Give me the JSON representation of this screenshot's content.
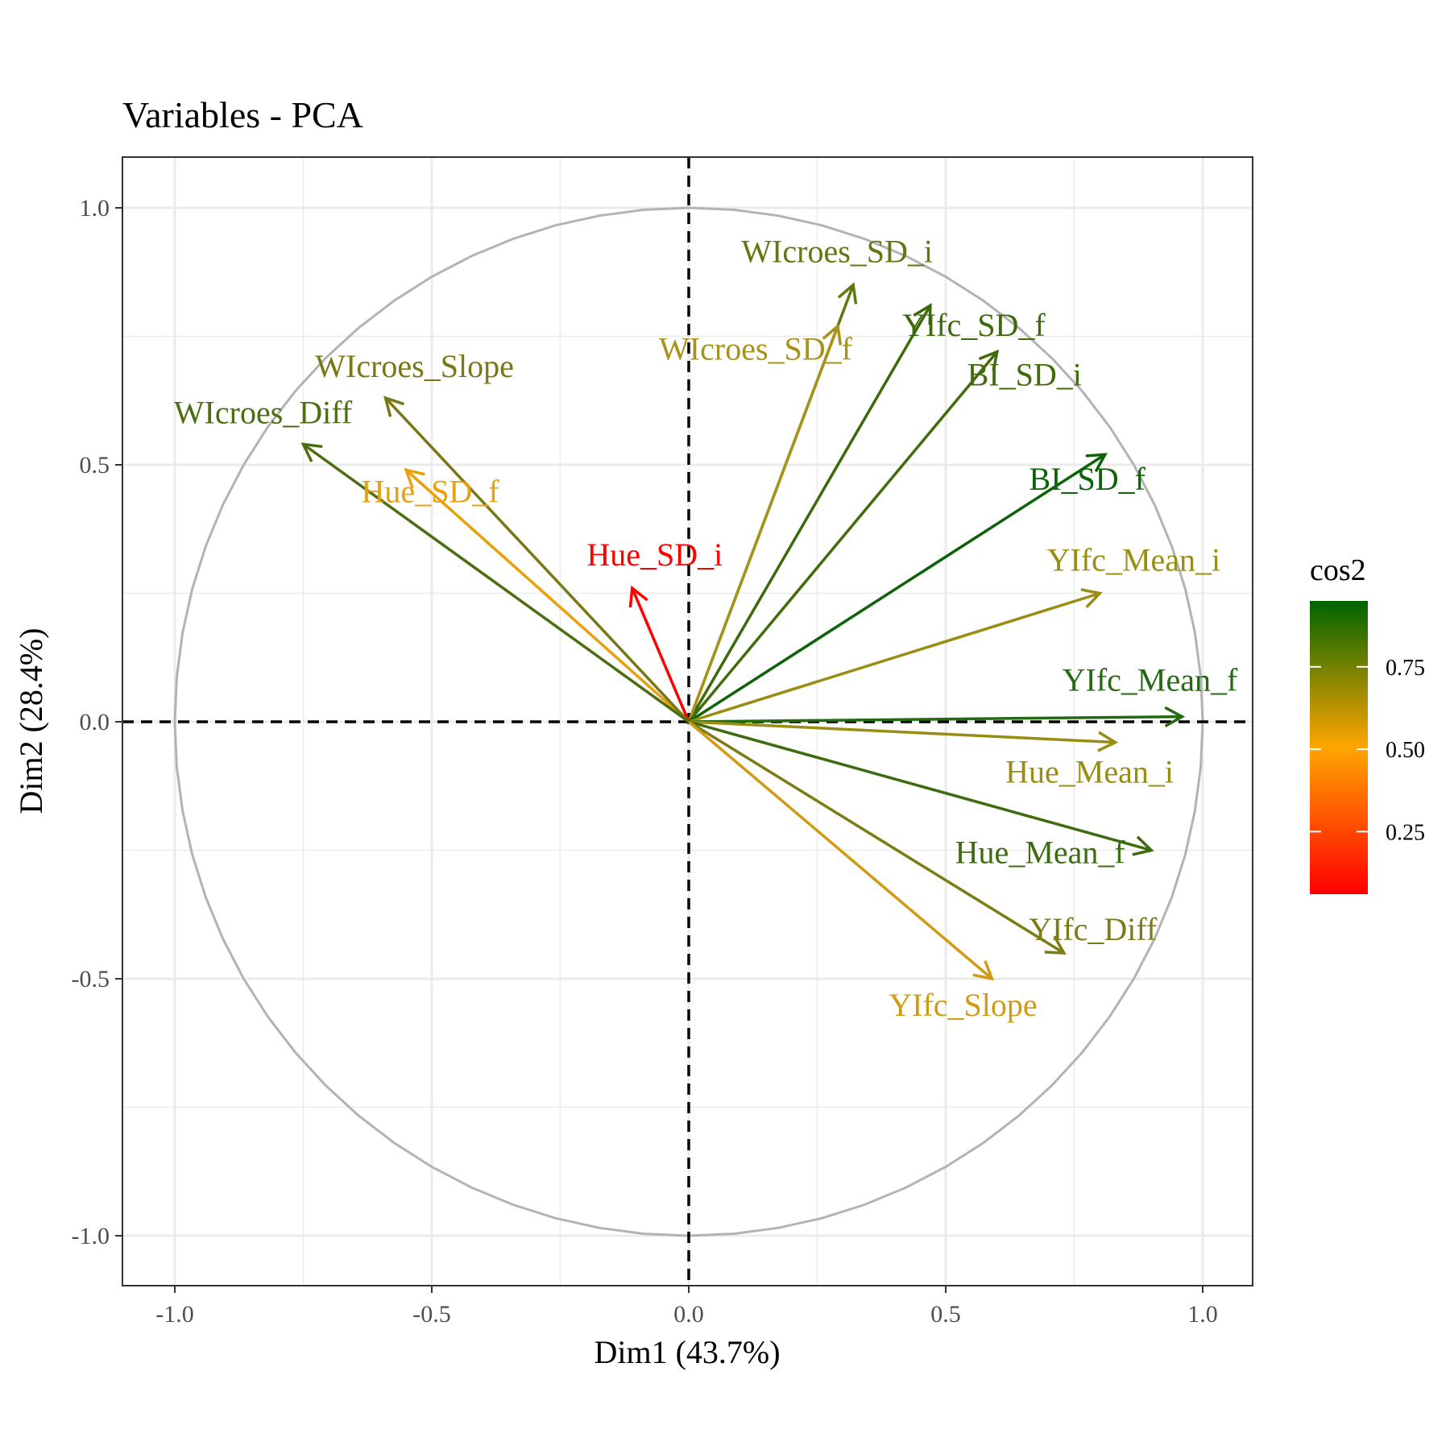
{
  "chart_data": {
    "type": "scatter",
    "subtype": "pca-variable-correlation-circle",
    "title": "Variables - PCA",
    "xlabel": "Dim1 (43.7%)",
    "ylabel": "Dim2 (28.4%)",
    "xlim": [
      -1.1,
      1.1
    ],
    "ylim": [
      -1.1,
      1.1
    ],
    "xticks": [
      -1.0,
      -0.5,
      0.0,
      0.5,
      1.0
    ],
    "yticks": [
      -1.0,
      -0.5,
      0.0,
      0.5,
      1.0
    ],
    "xtick_labels": [
      "-1.0",
      "-0.5",
      "0.0",
      "0.5",
      "1.0"
    ],
    "ytick_labels": [
      "-1.0",
      "-0.5",
      "0.0",
      "0.5",
      "1.0"
    ],
    "grid": true,
    "reference_lines": {
      "x": 0,
      "y": 0,
      "style": "dashed"
    },
    "unit_circle": true,
    "legend": {
      "title": "cos2",
      "position": "right",
      "range": [
        0.06,
        0.95
      ],
      "breaks": [
        0.25,
        0.5,
        0.75
      ],
      "break_labels": [
        "0.25",
        "0.50",
        "0.75"
      ],
      "colors": {
        "low": "#FF0000",
        "mid": "#FFA500",
        "high": "#006400"
      }
    },
    "variables": [
      {
        "name": "WIcroes_SD_i",
        "x": 0.32,
        "y": 0.85,
        "cos2": 0.82,
        "color": "#5E7A0F"
      },
      {
        "name": "YIfc_SD_f",
        "x": 0.47,
        "y": 0.81,
        "cos2": 0.88,
        "color": "#3C6A0B"
      },
      {
        "name": "WIcroes_SD_f",
        "x": 0.29,
        "y": 0.77,
        "cos2": 0.68,
        "color": "#A8921A"
      },
      {
        "name": "BI_SD_i",
        "x": 0.6,
        "y": 0.72,
        "cos2": 0.87,
        "color": "#436B0E"
      },
      {
        "name": "BI_SD_f",
        "x": 0.81,
        "y": 0.52,
        "cos2": 0.93,
        "color": "#0E6209"
      },
      {
        "name": "YIfc_Mean_i",
        "x": 0.8,
        "y": 0.25,
        "cos2": 0.7,
        "color": "#9A8D14"
      },
      {
        "name": "YIfc_Mean_f",
        "x": 0.96,
        "y": 0.01,
        "cos2": 0.92,
        "color": "#236A12"
      },
      {
        "name": "Hue_Mean_i",
        "x": 0.83,
        "y": -0.04,
        "cos2": 0.7,
        "color": "#9A8D14"
      },
      {
        "name": "Hue_Mean_f",
        "x": 0.9,
        "y": -0.25,
        "cos2": 0.87,
        "color": "#3E6B10"
      },
      {
        "name": "YIfc_Diff",
        "x": 0.73,
        "y": -0.45,
        "cos2": 0.74,
        "color": "#7C7C15"
      },
      {
        "name": "YIfc_Slope",
        "x": 0.59,
        "y": -0.5,
        "cos2": 0.6,
        "color": "#D19B14"
      },
      {
        "name": "Hue_SD_i",
        "x": -0.11,
        "y": 0.26,
        "cos2": 0.08,
        "color": "#FF0000"
      },
      {
        "name": "Hue_SD_f",
        "x": -0.55,
        "y": 0.49,
        "cos2": 0.54,
        "color": "#E8A00C"
      },
      {
        "name": "WIcroes_Slope",
        "x": -0.59,
        "y": 0.63,
        "cos2": 0.75,
        "color": "#787816"
      },
      {
        "name": "WIcroes_Diff",
        "x": -0.75,
        "y": 0.54,
        "cos2": 0.85,
        "color": "#4C6E12"
      }
    ]
  }
}
